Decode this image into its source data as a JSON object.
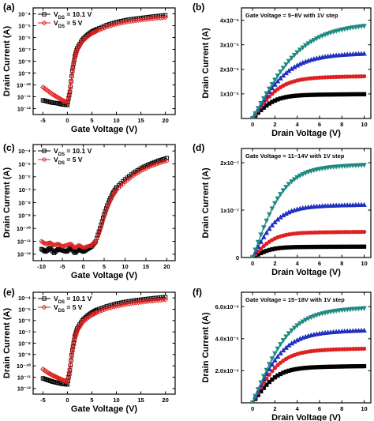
{
  "chart_data": [
    {
      "id": "a",
      "label": "(a)",
      "type": "line",
      "log_y": true,
      "xlabel": "Gate Voltage (V)",
      "ylabel": "Drain Current (A)",
      "xlim": [
        -7,
        22
      ],
      "ylim": [
        -12.5,
        -3.5
      ],
      "xticks": [
        -5,
        0,
        5,
        10,
        15,
        20
      ],
      "yticks": [
        -12,
        -11,
        -10,
        -9,
        -8,
        -7,
        -6,
        -5,
        -4
      ],
      "ytick_labels": [
        "10⁻¹²",
        "10⁻¹¹",
        "10⁻¹⁰",
        "10⁻⁹",
        "10⁻⁸",
        "10⁻⁷",
        "10⁻⁶",
        "10⁻⁵",
        "10⁻⁴"
      ],
      "legend_position": "top-left",
      "series": [
        {
          "name": "V_DS = 10.1 V",
          "name_main": "V",
          "name_sub": "DS",
          "name_rest": " = 10.1 V",
          "color": "#000000",
          "marker": "square",
          "x": [
            -5,
            -4,
            -3,
            -2,
            -1,
            0,
            0.5,
            1,
            1.5,
            2,
            3,
            4,
            5,
            6,
            8,
            10,
            12,
            14,
            16,
            18,
            20
          ],
          "y": [
            -11.3,
            -11.4,
            -11.5,
            -11.55,
            -11.65,
            -11.7,
            -10.6,
            -8.8,
            -7.6,
            -6.9,
            -6.2,
            -5.8,
            -5.5,
            -5.3,
            -4.95,
            -4.7,
            -4.52,
            -4.4,
            -4.3,
            -4.2,
            -4.12
          ]
        },
        {
          "name": "V_DS = 5 V",
          "name_main": "V",
          "name_sub": "DS",
          "name_rest": " = 5 V",
          "color": "#e02020",
          "marker": "diamond",
          "x": [
            -5,
            -4,
            -3,
            -2,
            -1,
            0,
            0.5,
            1,
            1.5,
            2,
            3,
            4,
            5,
            6,
            8,
            10,
            12,
            14,
            16,
            18,
            20
          ],
          "y": [
            -10.2,
            -10.5,
            -10.8,
            -11.05,
            -11.3,
            -11.5,
            -10.5,
            -8.9,
            -7.75,
            -7.05,
            -6.35,
            -5.95,
            -5.65,
            -5.45,
            -5.1,
            -4.85,
            -4.68,
            -4.56,
            -4.46,
            -4.37,
            -4.3
          ]
        }
      ]
    },
    {
      "id": "b",
      "label": "(b)",
      "type": "line",
      "xlabel": "Drain Voltage (V)",
      "ylabel": "Drain Current (A)",
      "annotation": "Gate Voltage = 5~8V with 1V step",
      "xlim": [
        -1,
        10.6
      ],
      "ylim": [
        0,
        4.5
      ],
      "xticks": [
        0,
        2,
        4,
        6,
        8,
        10
      ],
      "yticks": [
        1,
        2,
        3,
        4
      ],
      "ytick_labels": [
        "1x10⁻⁵",
        "2x10⁻⁵",
        "3x10⁻⁵",
        "4x10⁻⁵"
      ],
      "series": [
        {
          "color": "#000000",
          "marker": "square",
          "sat": 0.95,
          "k": 1.0
        },
        {
          "color": "#e02020",
          "marker": "circle",
          "sat": 1.65,
          "k": 0.8
        },
        {
          "color": "#2030c0",
          "marker": "triangle",
          "sat": 2.55,
          "k": 0.6
        },
        {
          "color": "#1f8b80",
          "marker": "triangle-down",
          "sat": 3.7,
          "k": 0.45
        }
      ]
    },
    {
      "id": "c",
      "label": "(c)",
      "type": "line",
      "log_y": true,
      "xlabel": "Gate Voltage (V)",
      "ylabel": "Drain Current (A)",
      "xlim": [
        -12,
        22
      ],
      "ylim": [
        -12.5,
        -3.5
      ],
      "xticks": [
        -10,
        -5,
        0,
        5,
        10,
        15,
        20
      ],
      "yticks": [
        -12,
        -11,
        -10,
        -9,
        -8,
        -7,
        -6,
        -5,
        -4
      ],
      "ytick_labels": [
        "10⁻¹²",
        "10⁻¹¹",
        "10⁻¹⁰",
        "10⁻⁹",
        "10⁻⁸",
        "10⁻⁷",
        "10⁻⁶",
        "10⁻⁵",
        "10⁻⁴"
      ],
      "legend_position": "top-left",
      "series": [
        {
          "name": "V_DS = 10.1 V",
          "name_main": "V",
          "name_sub": "DS",
          "name_rest": " = 10.1 V",
          "color": "#000000",
          "marker": "square",
          "x": [
            -10,
            -9,
            -8,
            -7,
            -6,
            -5,
            -4,
            -3,
            -2,
            -1,
            0,
            1,
            2,
            3,
            4,
            5,
            6,
            7,
            8,
            10,
            12,
            14,
            16,
            18,
            20
          ],
          "y": [
            -11.6,
            -11.8,
            -11.5,
            -11.9,
            -11.6,
            -11.7,
            -11.8,
            -11.5,
            -11.9,
            -11.6,
            -11.8,
            -11.6,
            -11.4,
            -11.0,
            -10.0,
            -8.9,
            -8.0,
            -7.3,
            -6.8,
            -6.2,
            -5.7,
            -5.3,
            -5.0,
            -4.75,
            -4.55
          ]
        },
        {
          "name": "V_DS = 5 V",
          "name_main": "V",
          "name_sub": "DS",
          "name_rest": " = 5 V",
          "color": "#e02020",
          "marker": "circle",
          "x": [
            -10,
            -9,
            -8,
            -7,
            -6,
            -5,
            -4,
            -3,
            -2,
            -1,
            0,
            1,
            2,
            3,
            4,
            5,
            6,
            7,
            8,
            10,
            12,
            14,
            16,
            18,
            20
          ],
          "y": [
            -11.0,
            -11.2,
            -11.1,
            -11.3,
            -11.2,
            -11.4,
            -11.3,
            -11.2,
            -11.5,
            -11.3,
            -11.5,
            -11.4,
            -11.3,
            -11.0,
            -10.2,
            -9.1,
            -8.2,
            -7.5,
            -7.0,
            -6.4,
            -5.9,
            -5.5,
            -5.2,
            -4.95,
            -4.75
          ]
        }
      ]
    },
    {
      "id": "d",
      "label": "(d)",
      "type": "line",
      "xlabel": "Drain Voltage (V)",
      "ylabel": "Drain Current (A)",
      "annotation": "Gate Voltage = 11~14V with 1V step",
      "xlim": [
        -1,
        10.6
      ],
      "ylim": [
        0,
        2.3
      ],
      "xticks": [
        0,
        2,
        4,
        6,
        8,
        10
      ],
      "yticks": [
        0,
        1,
        2
      ],
      "ytick_labels": [
        "0",
        "1x10⁻⁷",
        "2x10⁻⁷"
      ],
      "series": [
        {
          "color": "#000000",
          "marker": "square",
          "sat": 0.22,
          "k": 1.2
        },
        {
          "color": "#e02020",
          "marker": "circle",
          "sat": 0.52,
          "k": 1.0
        },
        {
          "color": "#2030c0",
          "marker": "triangle",
          "sat": 1.07,
          "k": 0.85
        },
        {
          "color": "#1f8b80",
          "marker": "triangle-down",
          "sat": 1.88,
          "k": 0.7
        }
      ]
    },
    {
      "id": "e",
      "label": "(e)",
      "type": "line",
      "log_y": true,
      "xlabel": "Gate Voltage (V)",
      "ylabel": "Drain Current (A)",
      "xlim": [
        -7,
        22
      ],
      "ylim": [
        -12.5,
        -3.5
      ],
      "xticks": [
        -5,
        0,
        5,
        10,
        15,
        20
      ],
      "yticks": [
        -12,
        -11,
        -10,
        -9,
        -8,
        -7,
        -6,
        -5,
        -4
      ],
      "ytick_labels": [
        "10⁻¹²",
        "10⁻¹¹",
        "10⁻¹⁰",
        "10⁻⁹",
        "10⁻⁸",
        "10⁻⁷",
        "10⁻⁶",
        "10⁻⁵",
        "10⁻⁴"
      ],
      "legend_position": "top-left",
      "series": [
        {
          "name": "V_DS = 10.1 V",
          "name_main": "V",
          "name_sub": "DS",
          "name_rest": " = 10.1 V",
          "color": "#000000",
          "marker": "square",
          "x": [
            -5,
            -4,
            -3,
            -2,
            -1,
            0,
            0.5,
            1,
            1.5,
            2,
            3,
            4,
            5,
            6,
            8,
            10,
            12,
            14,
            16,
            18,
            20
          ],
          "y": [
            -11.1,
            -11.25,
            -11.4,
            -11.5,
            -11.6,
            -11.65,
            -10.4,
            -8.6,
            -7.4,
            -6.7,
            -6.0,
            -5.6,
            -5.3,
            -5.05,
            -4.75,
            -4.5,
            -4.33,
            -4.2,
            -4.1,
            -4.0,
            -3.92
          ]
        },
        {
          "name": "V_DS = 5 V",
          "name_main": "V",
          "name_sub": "DS",
          "name_rest": " = 5 V",
          "color": "#e02020",
          "marker": "diamond",
          "x": [
            -5,
            -4,
            -3,
            -2,
            -1,
            0,
            0.5,
            1,
            1.5,
            2,
            3,
            4,
            5,
            6,
            8,
            10,
            12,
            14,
            16,
            18,
            20
          ],
          "y": [
            -10.3,
            -10.6,
            -10.85,
            -11.05,
            -11.25,
            -11.4,
            -10.3,
            -8.75,
            -7.6,
            -6.9,
            -6.2,
            -5.8,
            -5.5,
            -5.28,
            -4.95,
            -4.72,
            -4.55,
            -4.42,
            -4.32,
            -4.23,
            -4.15
          ]
        }
      ]
    },
    {
      "id": "f",
      "label": "(f)",
      "type": "line",
      "xlabel": "Drain Voltage (V)",
      "ylabel": "Drain Current (A)",
      "annotation": "Gate Voltage = 15~18V with 1V step",
      "xlim": [
        -1,
        10.6
      ],
      "ylim": [
        0,
        6.9
      ],
      "xticks": [
        0,
        2,
        4,
        6,
        8,
        10
      ],
      "yticks": [
        2,
        4,
        6
      ],
      "ytick_labels": [
        "2.0x10⁻⁶",
        "4.0x10⁻⁶",
        "6.0x10⁻⁶"
      ],
      "series": [
        {
          "color": "#000000",
          "marker": "square",
          "sat": 2.2,
          "k": 0.9
        },
        {
          "color": "#e02020",
          "marker": "circle",
          "sat": 3.25,
          "k": 0.8
        },
        {
          "color": "#2030c0",
          "marker": "triangle",
          "sat": 4.35,
          "k": 0.7
        },
        {
          "color": "#1f8b80",
          "marker": "triangle-down",
          "sat": 5.7,
          "k": 0.6
        }
      ]
    }
  ]
}
